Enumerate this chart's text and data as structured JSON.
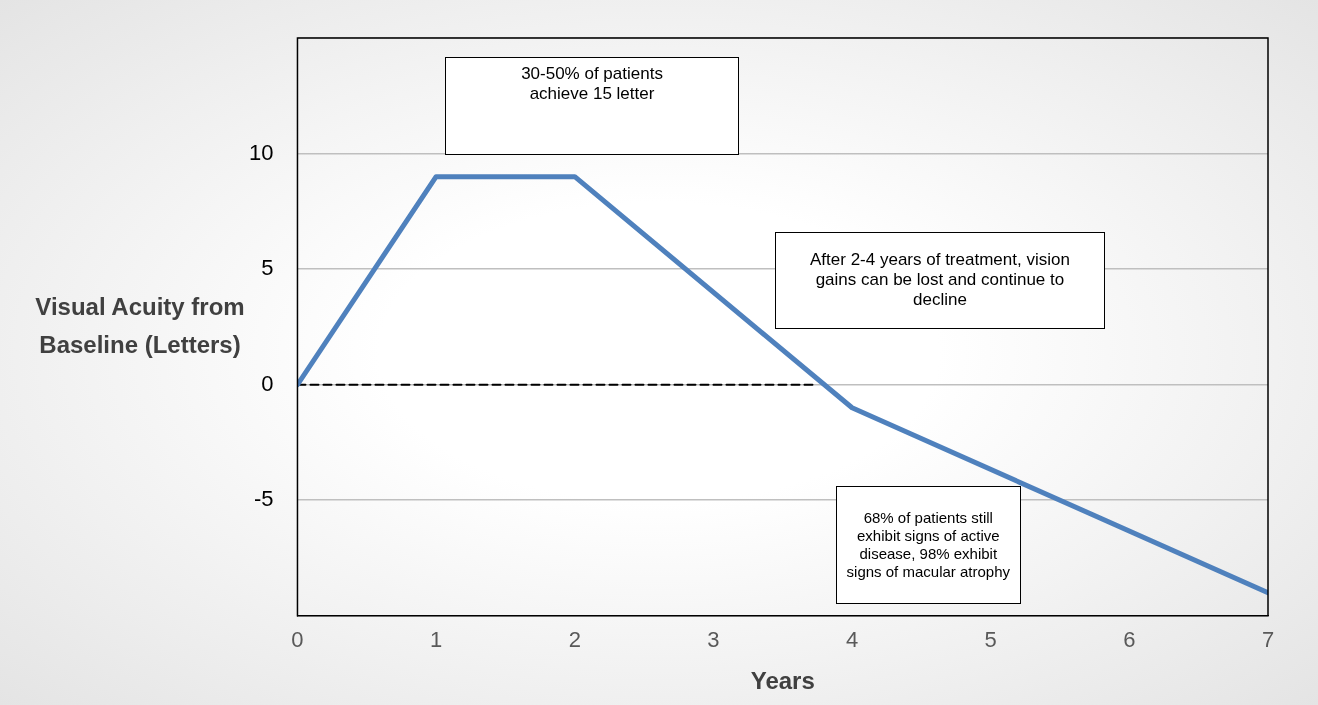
{
  "chart_data": {
    "type": "line",
    "xlabel": "Years",
    "ylabel": "Visual Acuity from Baseline (Letters)",
    "xlim": [
      0,
      7
    ],
    "xticks": [
      0,
      1,
      2,
      3,
      4,
      5,
      6,
      7
    ],
    "ylim": [
      -10,
      15
    ],
    "yticks": [
      {
        "value": -10,
        "label": null
      },
      -5,
      0,
      5,
      10,
      {
        "value": 15,
        "label": null
      }
    ],
    "grid": "y",
    "legend": false,
    "marker": "none",
    "series": [
      {
        "color": "#4f81bd",
        "x": [
          0,
          1,
          2,
          4,
          7
        ],
        "values": [
          0,
          9,
          9,
          -1,
          -9
        ]
      },
      {
        "color": "#000000",
        "line_style": "dashed",
        "x": [
          0,
          3.75
        ],
        "values": [
          0,
          0
        ]
      }
    ],
    "annotations": [
      "30-50% of patients achieve 15 letter",
      "After 2-4 years of treatment, vision gains can be lost and continue to decline",
      "68% of patients still exhibit signs of active disease, 98% exhibit signs of macular atrophy"
    ]
  }
}
